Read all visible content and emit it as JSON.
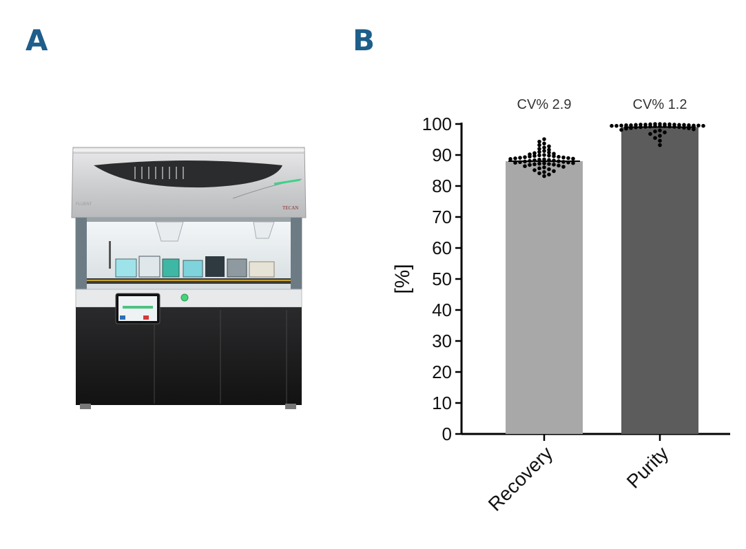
{
  "panels": {
    "a": "A",
    "b": "B"
  },
  "instrument": {
    "brand": "TECAN",
    "model": "FLUENT"
  },
  "chart_data": {
    "type": "bar",
    "categories": [
      "Recovery",
      "Purity"
    ],
    "values": [
      88,
      99
    ],
    "colors": [
      "#a8a8a8",
      "#5c5c5c"
    ],
    "annotations": [
      "CV% 2.9",
      "CV% 1.2"
    ],
    "ylabel": "[%]",
    "ylim": [
      0,
      100
    ],
    "yticks": [
      0,
      10,
      20,
      30,
      40,
      50,
      60,
      70,
      80,
      90,
      100
    ],
    "scatter_points": [
      [
        95.1,
        94.3,
        93.7,
        93.2,
        92.8,
        92.4,
        92.0,
        91.7,
        91.3,
        91.0,
        90.8,
        90.6,
        90.4,
        90.2,
        90.0,
        89.9,
        89.8,
        89.7,
        89.6,
        89.5,
        89.4,
        89.3,
        89.2,
        89.1,
        89.0,
        88.9,
        88.8,
        88.7,
        88.6,
        88.5,
        88.4,
        88.3,
        88.2,
        88.1,
        88.0,
        87.9,
        87.8,
        87.7,
        87.6,
        87.5,
        87.4,
        87.3,
        87.2,
        87.1,
        87.0,
        86.9,
        86.8,
        86.6,
        86.4,
        86.2,
        86.0,
        85.7,
        85.4,
        85.1,
        84.8,
        84.5,
        84.1,
        83.7,
        83.2
      ],
      [
        100.0,
        100.0,
        99.9,
        99.9,
        99.9,
        99.8,
        99.8,
        99.8,
        99.7,
        99.7,
        99.7,
        99.6,
        99.6,
        99.6,
        99.5,
        99.5,
        99.5,
        99.4,
        99.4,
        99.4,
        99.3,
        99.3,
        99.3,
        99.2,
        99.2,
        99.1,
        99.1,
        99.0,
        99.0,
        98.9,
        98.8,
        98.7,
        98.6,
        98.5,
        98.3,
        98.1,
        97.9,
        97.6,
        97.3,
        96.8,
        96.2,
        95.5,
        94.6,
        93.2
      ]
    ]
  }
}
